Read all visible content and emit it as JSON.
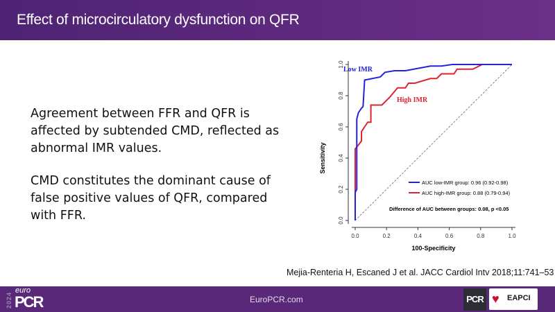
{
  "header": {
    "title": "Effect of microcirculatory dysfunction on QFR"
  },
  "body": {
    "paragraphs": [
      "Agreement between FFR and QFR is affected by subtended CMD, reflected as abnormal IMR values.",
      "CMD constitutes the dominant cause of false positive values of QFR, compared with FFR."
    ]
  },
  "citation": "Mejia-Renteria H, Escaned J et al. JACC Cardiol Intv 2018;11:741–53",
  "footer": {
    "year": "2024",
    "logo_euro": "euro",
    "logo_pcr": "PCR",
    "site": "EuroPCR.com",
    "badge_pcr": "PCR",
    "badge_eapci": "EAPCI"
  },
  "chart_data": {
    "type": "line",
    "xlabel": "100-Specificity",
    "ylabel": "Sensitivity",
    "xlim": [
      0,
      1
    ],
    "ylim": [
      0,
      1
    ],
    "xticks": [
      "0.0",
      "0.2",
      "0.4",
      "0.6",
      "0.8",
      "1.0"
    ],
    "yticks": [
      "0.0",
      "0.2",
      "0.4",
      "0.6",
      "0.8",
      "1.0"
    ],
    "grid": false,
    "series": [
      {
        "name": "Low IMR",
        "color": "#2222dd",
        "x": [
          0,
          0,
          0.01,
          0.01,
          0.01,
          0.02,
          0.04,
          0.05,
          0.06,
          0.16,
          0.19,
          0.25,
          0.32,
          0.4,
          0.48,
          0.55,
          0.62,
          1
        ],
        "y": [
          0,
          0.18,
          0.2,
          0.48,
          0.65,
          0.69,
          0.72,
          0.73,
          0.9,
          0.92,
          0.95,
          0.96,
          0.96,
          0.975,
          0.99,
          0.99,
          1,
          1
        ]
      },
      {
        "name": "High IMR",
        "color": "#dd2233",
        "x": [
          0,
          0,
          0.01,
          0.04,
          0.04,
          0.08,
          0.1,
          0.1,
          0.17,
          0.22,
          0.27,
          0.32,
          0.34,
          0.38,
          0.48,
          0.52,
          0.55,
          0.63,
          0.65,
          0.75,
          0.81,
          1
        ],
        "y": [
          0,
          0.46,
          0.47,
          0.51,
          0.57,
          0.63,
          0.63,
          0.74,
          0.74,
          0.79,
          0.85,
          0.85,
          0.88,
          0.88,
          0.91,
          0.91,
          0.94,
          0.94,
          0.97,
          0.97,
          1,
          1
        ]
      }
    ],
    "reference_line": {
      "x": [
        0,
        1
      ],
      "y": [
        0,
        1
      ],
      "style": "dashed"
    },
    "legend": {
      "placement": "bottom-right",
      "entries": [
        {
          "label": "AUC low-IMR  group: 0.96 (0.92-0.98)",
          "color": "#2222dd"
        },
        {
          "label": "AUC high-IMR group: 0.88 (0.79-0.94)",
          "color": "#dd2233"
        }
      ]
    },
    "annotations": [
      "Difference of AUC between groups: 0.08, p <0.05"
    ]
  }
}
